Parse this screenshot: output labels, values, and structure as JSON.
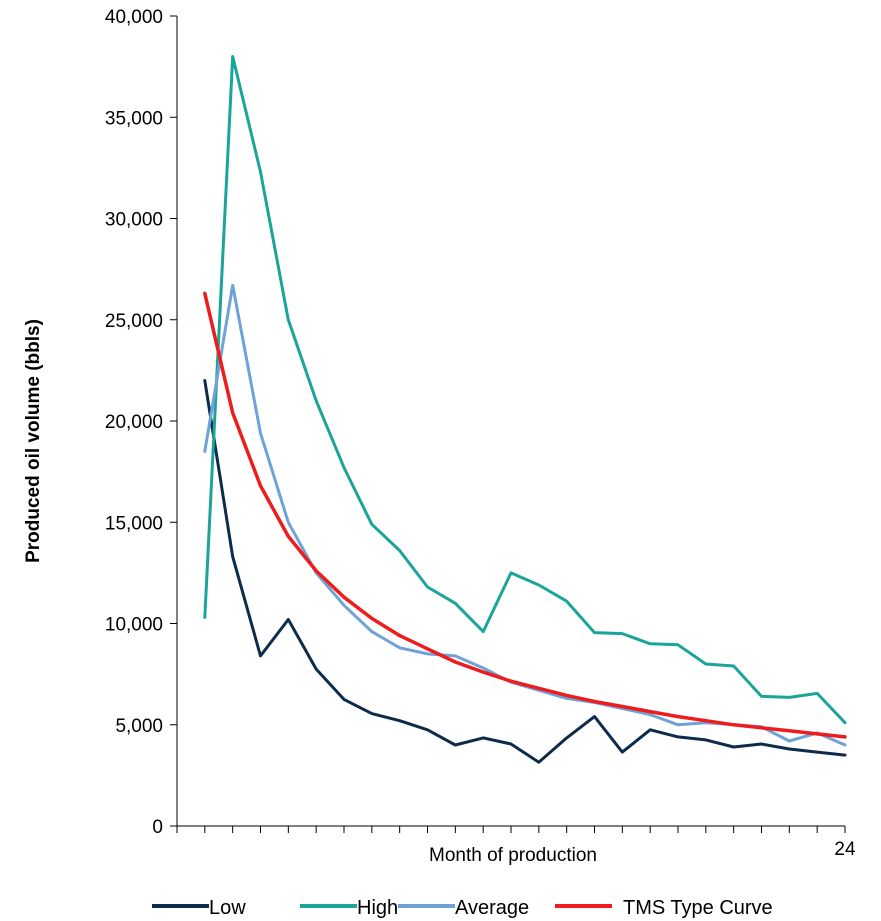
{
  "chart_data": {
    "type": "line",
    "xlabel": "Month of production",
    "ylabel": "Produced oil volume (bbls)",
    "x": [
      1,
      2,
      3,
      4,
      5,
      6,
      7,
      8,
      9,
      10,
      11,
      12,
      13,
      14,
      15,
      16,
      17,
      18,
      19,
      20,
      21,
      22,
      23,
      24
    ],
    "xlim": [
      0,
      24
    ],
    "x_tick_labels": [
      {
        "x": 24,
        "label": "24"
      }
    ],
    "ylim": [
      0,
      40000
    ],
    "y_ticks": [
      0,
      5000,
      10000,
      15000,
      20000,
      25000,
      30000,
      35000,
      40000
    ],
    "y_tick_labels": [
      "0",
      "5,000",
      "10,000",
      "15,000",
      "20,000",
      "25,000",
      "30,000",
      "35,000",
      "40,000"
    ],
    "grid": false,
    "legend_position": "bottom",
    "series": [
      {
        "name": "Low",
        "color": "#0d2b4a",
        "values": [
          22000,
          13300,
          8400,
          10200,
          7750,
          6250,
          5550,
          5200,
          4750,
          4000,
          4350,
          4050,
          3150,
          4350,
          5400,
          3650,
          4750,
          4400,
          4250,
          3900,
          4050,
          3800,
          3650,
          3500
        ]
      },
      {
        "name": "High",
        "color": "#1aa59a",
        "values": [
          10300,
          38000,
          32300,
          25000,
          21000,
          17700,
          14900,
          13600,
          11800,
          11000,
          9600,
          12500,
          11900,
          11100,
          9550,
          9500,
          9000,
          8950,
          8000,
          7900,
          6400,
          6350,
          6550,
          5100
        ]
      },
      {
        "name": "Average",
        "color": "#6fa2d6",
        "values": [
          18500,
          26700,
          19400,
          15000,
          12500,
          10900,
          9600,
          8800,
          8500,
          8400,
          7800,
          7100,
          6700,
          6300,
          6100,
          5800,
          5500,
          5000,
          5100,
          5000,
          4900,
          4200,
          4600,
          4000
        ]
      },
      {
        "name": "TMS Type Curve",
        "color": "#ee1c1c",
        "values": [
          26300,
          20400,
          16800,
          14300,
          12600,
          11300,
          10250,
          9400,
          8750,
          8100,
          7600,
          7150,
          6800,
          6450,
          6150,
          5900,
          5650,
          5400,
          5200,
          5000,
          4850,
          4700,
          4550,
          4400
        ]
      }
    ]
  }
}
